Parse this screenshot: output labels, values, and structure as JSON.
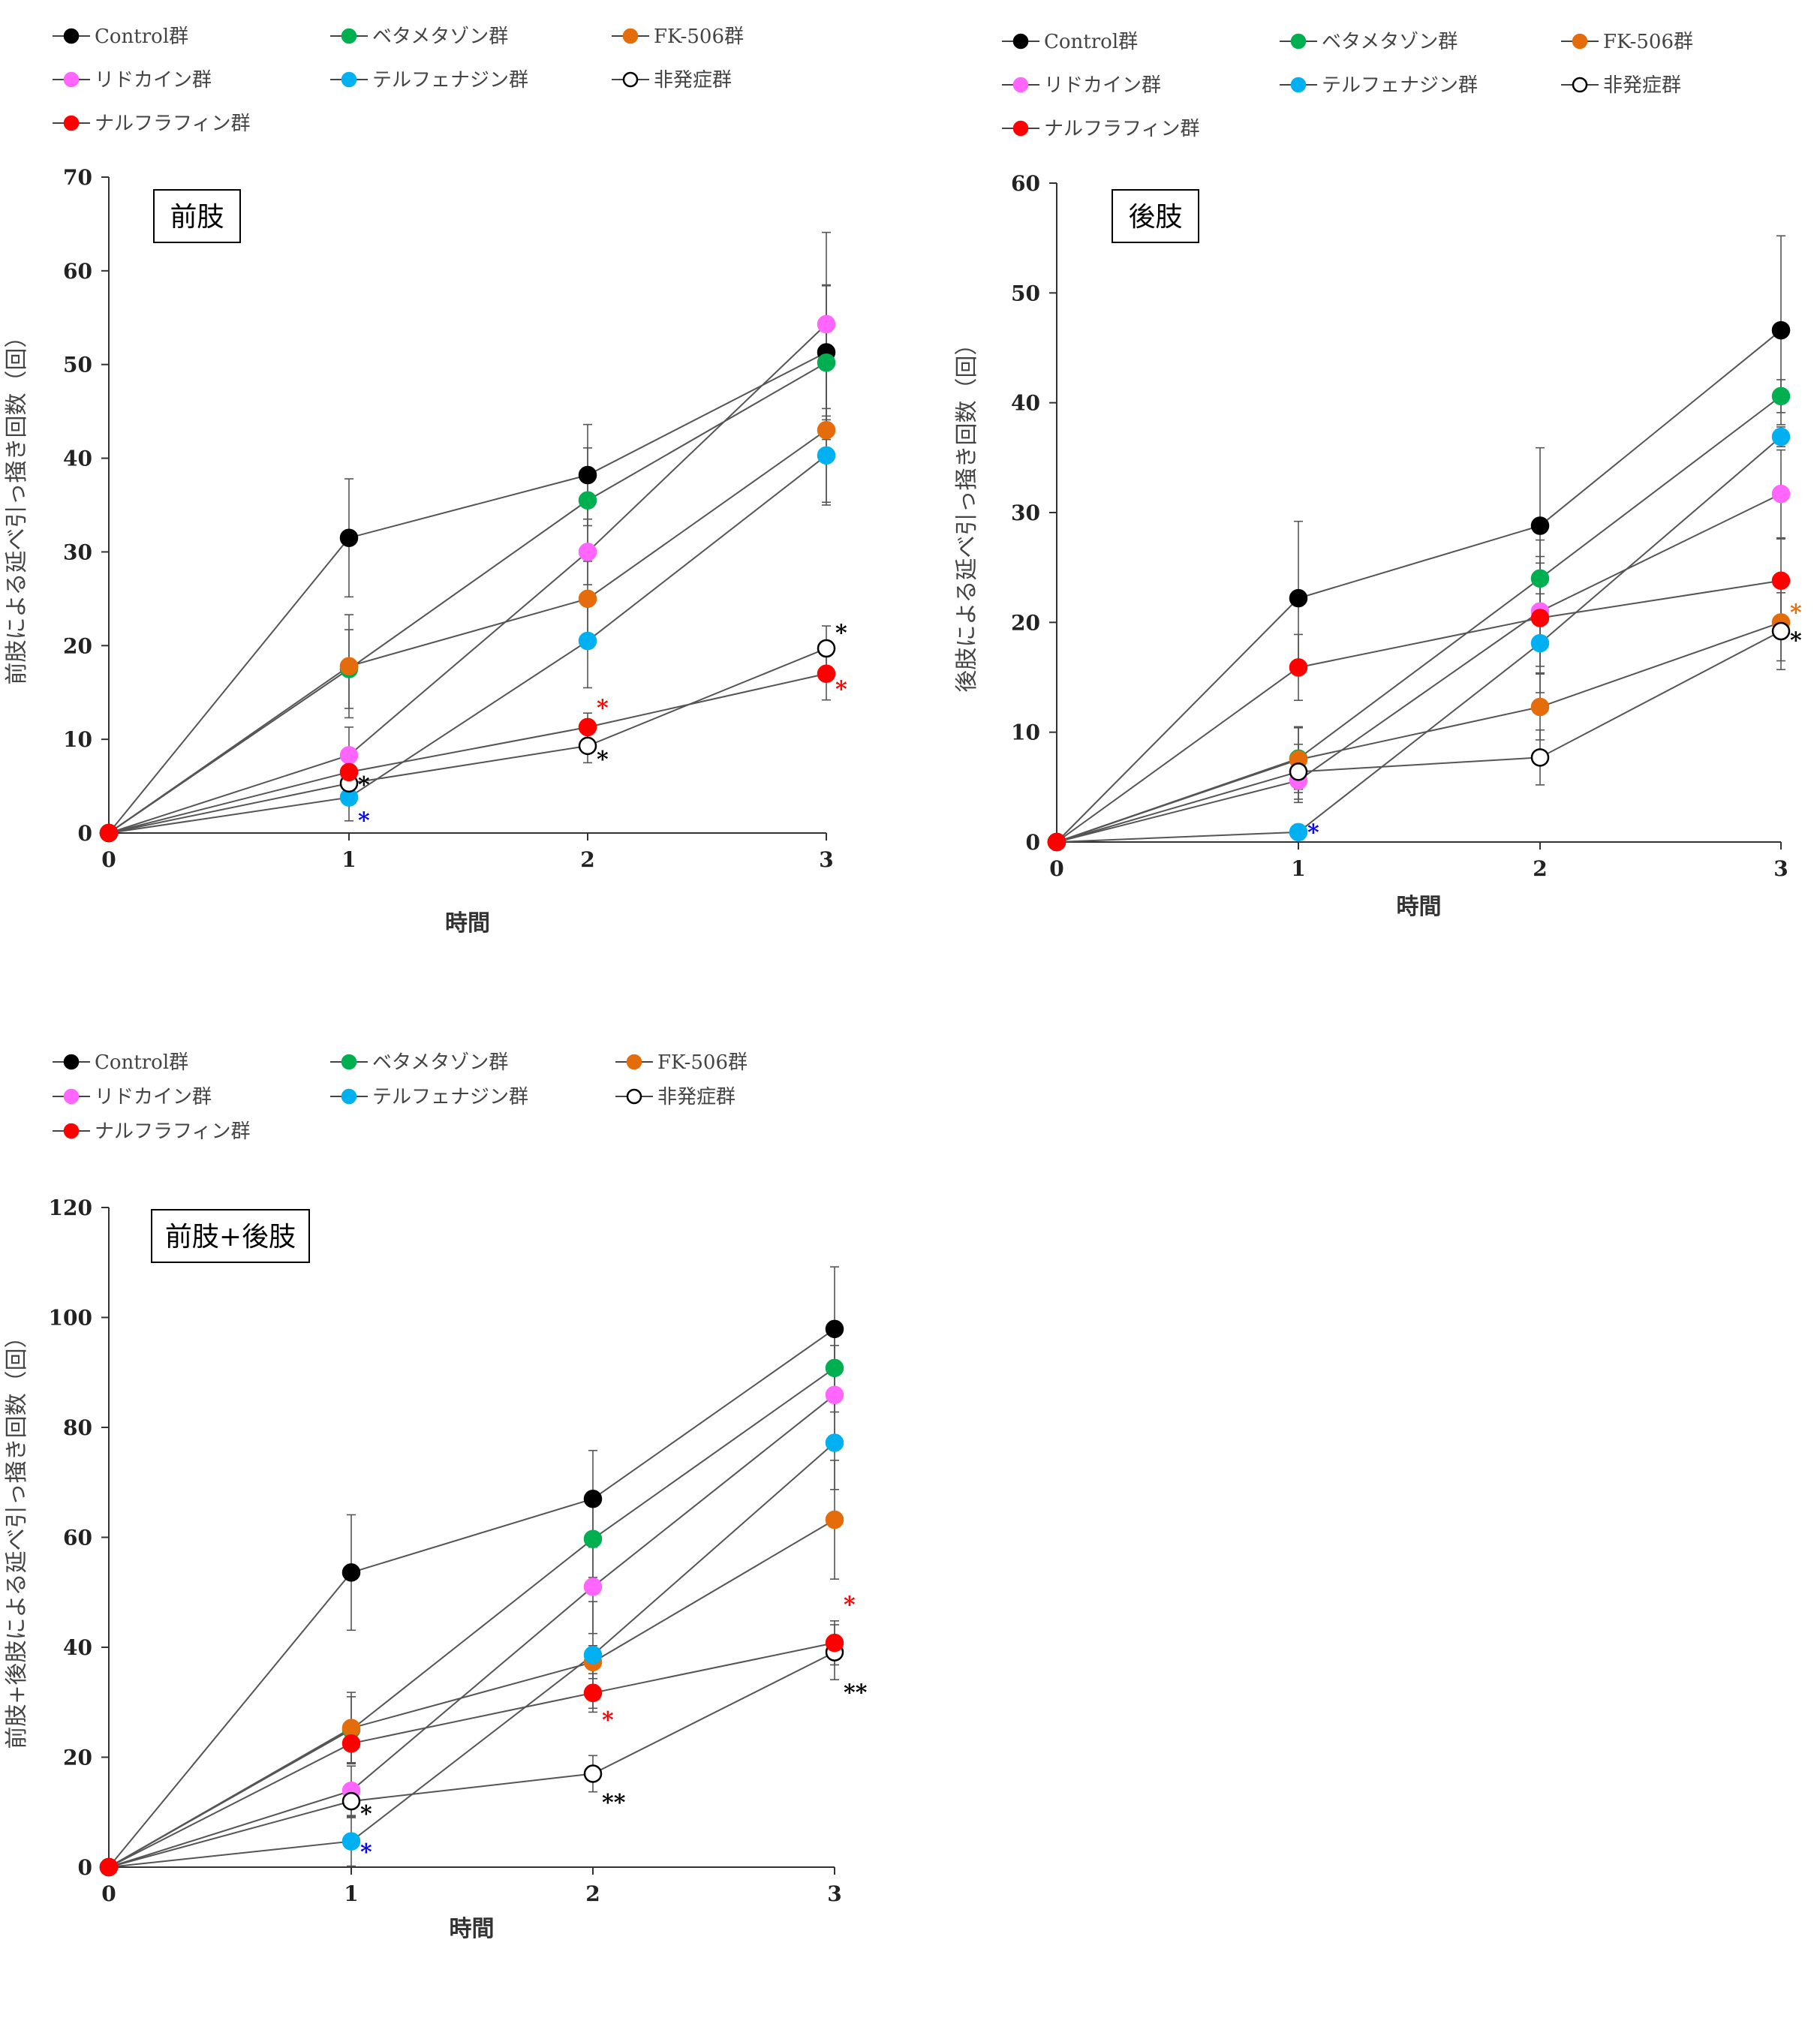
{
  "legend": [
    {
      "name": "Control群",
      "color": "#000000",
      "hollow": false
    },
    {
      "name": "ベタメタゾン群",
      "color": "#00b050",
      "hollow": false
    },
    {
      "name": "FK-506群",
      "color": "#e46c0a",
      "hollow": false
    },
    {
      "name": "リドカイン群",
      "color": "#ff66ff",
      "hollow": false
    },
    {
      "name": "テルフェナジン群",
      "color": "#00b0f0",
      "hollow": false
    },
    {
      "name": "非発症群",
      "color": "#000000",
      "hollow": true
    },
    {
      "name": "ナルフラフィン群",
      "color": "#ff0000",
      "hollow": false
    }
  ],
  "chart_data": [
    {
      "type": "line",
      "title": "前肢",
      "xlabel": "時間",
      "ylabel": "前肢による延べ引っ掻き回数（回）",
      "x": [
        0,
        1,
        2,
        3
      ],
      "xticks": [
        "0",
        "1",
        "2",
        "3"
      ],
      "ylim": [
        0,
        70
      ],
      "yticks": [
        0,
        10,
        20,
        30,
        40,
        50,
        60,
        70
      ],
      "series": [
        {
          "name": "Control群",
          "values": [
            0,
            31.5,
            38.2,
            51.3
          ],
          "errors": [
            0,
            6.3,
            5.4,
            7.2
          ]
        },
        {
          "name": "ベタメタゾン群",
          "values": [
            0,
            17.5,
            35.5,
            50.2
          ],
          "errors": [
            0,
            4.2,
            5.6,
            8.2
          ]
        },
        {
          "name": "FK-506群",
          "values": [
            0,
            17.8,
            25.0,
            43.0
          ],
          "errors": [
            0,
            5.5,
            4.0,
            8.0
          ]
        },
        {
          "name": "リドカイン群",
          "values": [
            0,
            8.3,
            30.0,
            54.3
          ],
          "errors": [
            0,
            3.0,
            3.5,
            9.8
          ]
        },
        {
          "name": "テルフェナジン群",
          "values": [
            0,
            3.8,
            20.5,
            40.3
          ],
          "errors": [
            0,
            2.5,
            5.0,
            5.0
          ]
        },
        {
          "name": "非発症群",
          "values": [
            0,
            5.3,
            9.3,
            19.7
          ],
          "errors": [
            0,
            1.5,
            1.8,
            2.4
          ]
        },
        {
          "name": "ナルフラフィン群",
          "values": [
            0,
            6.5,
            11.3,
            17.0
          ],
          "errors": [
            0,
            1.5,
            1.5,
            2.8
          ]
        }
      ],
      "annotations": [
        {
          "x": 1,
          "y": 5.3,
          "text": "*",
          "color": "#000000"
        },
        {
          "x": 1,
          "y": 1.5,
          "text": "*",
          "color": "#0000ff"
        },
        {
          "x": 2,
          "y": 13.5,
          "text": "*",
          "color": "#ff0000"
        },
        {
          "x": 2,
          "y": 8.0,
          "text": "*",
          "color": "#000000"
        },
        {
          "x": 3,
          "y": 21.5,
          "text": "*",
          "color": "#000000"
        },
        {
          "x": 3,
          "y": 15.5,
          "text": "*",
          "color": "#ff0000"
        }
      ]
    },
    {
      "type": "line",
      "title": "後肢",
      "xlabel": "時間",
      "ylabel": "後肢による延べ引っ掻き回数（回）",
      "x": [
        0,
        1,
        2,
        3
      ],
      "xticks": [
        "0",
        "1",
        "2",
        "3"
      ],
      "ylim": [
        0,
        60
      ],
      "yticks": [
        0,
        10,
        20,
        30,
        40,
        50,
        60
      ],
      "series": [
        {
          "name": "Control群",
          "values": [
            0,
            22.2,
            28.8,
            46.6
          ],
          "errors": [
            0,
            7.0,
            7.1,
            8.6
          ]
        },
        {
          "name": "ベタメタゾン群",
          "values": [
            0,
            7.6,
            24.0,
            40.6
          ],
          "errors": [
            0,
            2.8,
            3.5,
            1.5
          ]
        },
        {
          "name": "FK-506群",
          "values": [
            0,
            7.5,
            12.3,
            20.0
          ],
          "errors": [
            0,
            3.0,
            3.0,
            3.5
          ]
        },
        {
          "name": "リドカイン群",
          "values": [
            0,
            5.6,
            21.0,
            31.7
          ],
          "errors": [
            0,
            2.0,
            5.0,
            4.0
          ]
        },
        {
          "name": "テルフェナジン群",
          "values": [
            0,
            0.9,
            18.1,
            36.9
          ],
          "errors": [
            0,
            0.7,
            4.5,
            0.9
          ]
        },
        {
          "name": "非発症群",
          "values": [
            0,
            6.4,
            7.7,
            19.2
          ],
          "errors": [
            0,
            2.5,
            2.5,
            3.5
          ]
        },
        {
          "name": "ナルフラフィン群",
          "values": [
            0,
            15.9,
            20.4,
            23.8
          ],
          "errors": [
            0,
            3.0,
            5.0,
            3.8
          ]
        }
      ],
      "annotations": [
        {
          "x": 1,
          "y": 1.0,
          "text": "*",
          "color": "#0000ff"
        },
        {
          "x": 3,
          "y": 21.0,
          "text": "*",
          "color": "#e46c0a"
        },
        {
          "x": 3,
          "y": 18.5,
          "text": "*",
          "color": "#000000"
        }
      ]
    },
    {
      "type": "line",
      "title": "前肢+後肢",
      "xlabel": "時間",
      "ylabel": "前肢+後肢による延べ引っ掻き回数（回）",
      "x": [
        0,
        1,
        2,
        3
      ],
      "xticks": [
        "0",
        "1",
        "2",
        "3"
      ],
      "ylim": [
        0,
        120
      ],
      "yticks": [
        0,
        20,
        40,
        60,
        80,
        100,
        120
      ],
      "series": [
        {
          "name": "Control群",
          "values": [
            0,
            53.6,
            67.0,
            97.9
          ],
          "errors": [
            0,
            10.5,
            8.8,
            11.3
          ]
        },
        {
          "name": "ベタメタゾン群",
          "values": [
            0,
            25.0,
            59.7,
            90.8
          ],
          "errors": [
            0,
            6.0,
            7.0,
            8.0
          ]
        },
        {
          "name": "FK-506群",
          "values": [
            0,
            25.3,
            37.3,
            63.2
          ],
          "errors": [
            0,
            6.5,
            3.0,
            10.8
          ]
        },
        {
          "name": "リドカイン群",
          "values": [
            0,
            13.9,
            51.0,
            85.9
          ],
          "errors": [
            0,
            4.5,
            8.5,
            9.0
          ]
        },
        {
          "name": "テルフェナジン群",
          "values": [
            0,
            4.7,
            38.6,
            77.2
          ],
          "errors": [
            0,
            4.5,
            9.7,
            8.5
          ]
        },
        {
          "name": "非発症群",
          "values": [
            0,
            12.0,
            17.0,
            39.1
          ],
          "errors": [
            0,
            3.0,
            3.3,
            5.0
          ]
        },
        {
          "name": "ナルフラフィン群",
          "values": [
            0,
            22.5,
            31.7,
            40.8
          ],
          "errors": [
            0,
            3.5,
            3.5,
            4.0
          ]
        }
      ],
      "annotations": [
        {
          "x": 1,
          "y": 10.0,
          "text": "*",
          "color": "#000000"
        },
        {
          "x": 1,
          "y": 3.0,
          "text": "*",
          "color": "#0000ff"
        },
        {
          "x": 2,
          "y": 27.0,
          "text": "*",
          "color": "#ff0000"
        },
        {
          "x": 2,
          "y": 12.0,
          "text": "**",
          "color": "#000000"
        },
        {
          "x": 3,
          "y": 48.0,
          "text": "*",
          "color": "#ff0000"
        },
        {
          "x": 3,
          "y": 32.0,
          "text": "**",
          "color": "#000000"
        }
      ]
    }
  ]
}
